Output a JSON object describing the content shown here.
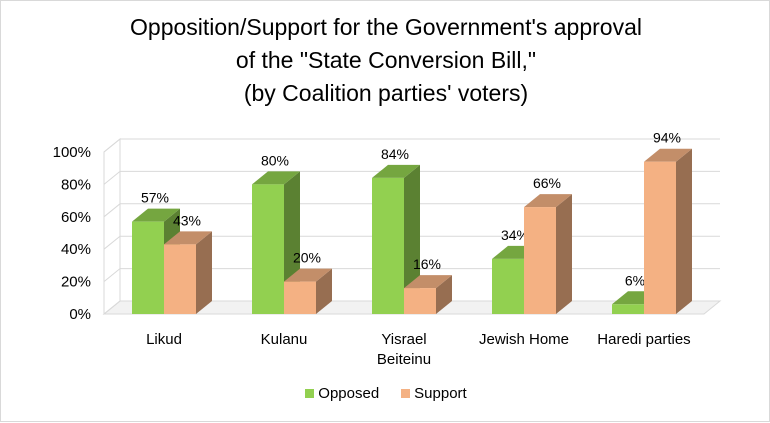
{
  "title_lines": [
    "Opposition/Support for the Government's approval",
    "of the \"State Conversion Bill,\"",
    "(by Coalition parties' voters)"
  ],
  "chart_data": {
    "type": "bar",
    "title": "Opposition/Support for the Government's approval of the \"State Conversion Bill,\" (by Coalition parties' voters)",
    "categories": [
      [
        "Likud"
      ],
      [
        "Kulanu"
      ],
      [
        "Yisrael",
        "Beiteinu"
      ],
      [
        "Jewish Home"
      ],
      [
        "Haredi parties"
      ]
    ],
    "series": [
      {
        "name": "Opposed",
        "values": [
          57,
          80,
          84,
          34,
          6
        ],
        "labels": [
          "57%",
          "80%",
          "84%",
          "34%",
          "6%"
        ],
        "color": "#92d050"
      },
      {
        "name": "Support",
        "values": [
          43,
          20,
          16,
          66,
          94
        ],
        "labels": [
          "43%",
          "20%",
          "16%",
          "66%",
          "94%"
        ],
        "color": "#f4b183"
      }
    ],
    "ylim": [
      0,
      100
    ],
    "yticks": [
      0,
      20,
      40,
      60,
      80,
      100
    ],
    "ytick_labels": [
      "0%",
      "20%",
      "40%",
      "60%",
      "80%",
      "100%"
    ],
    "grid": true,
    "legend_position": "bottom",
    "style": "3d-clustered-column"
  }
}
